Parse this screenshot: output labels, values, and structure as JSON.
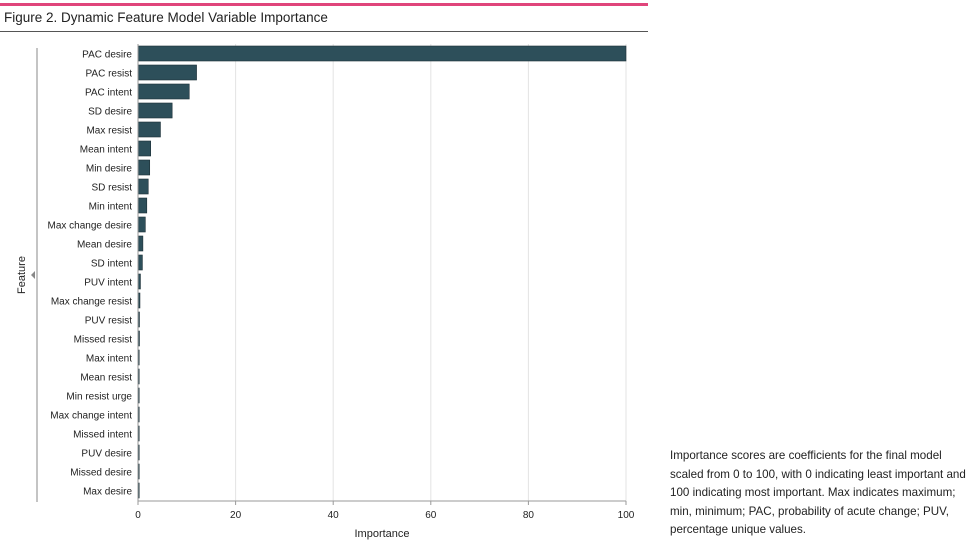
{
  "figure": {
    "title": "Figure 2. Dynamic Feature Model Variable Importance",
    "caption": "Importance scores are coefficients for the final model scaled from 0 to 100, with 0 indicating least important and 100 indicating most important. Max indicates maximum; min, minimum; PAC, probability of acute change; PUV, percentage unique values."
  },
  "colors": {
    "bar": "#2d4f5a",
    "accent_line": "#e0457b",
    "grid": "#e3e3e3"
  },
  "chart_data": {
    "type": "bar",
    "orientation": "horizontal",
    "xlabel": "Importance",
    "ylabel": "Feature",
    "xlim": [
      0,
      100
    ],
    "xticks": [
      0,
      20,
      40,
      60,
      80,
      100
    ],
    "grid": true,
    "categories": [
      "PAC desire",
      "PAC resist",
      "PAC intent",
      "SD desire",
      "Max resist",
      "Mean intent",
      "Min desire",
      "SD resist",
      "Min intent",
      "Max change desire",
      "Mean desire",
      "SD intent",
      "PUV intent",
      "Max change resist",
      "PUV resist",
      "Missed resist",
      "Max intent",
      "Mean resist",
      "Min resist urge",
      "Max change intent",
      "Missed intent",
      "PUV desire",
      "Missed desire",
      "Max desire"
    ],
    "values": [
      100,
      12,
      10.5,
      7,
      4.6,
      2.6,
      2.4,
      2.1,
      1.8,
      1.5,
      1.0,
      0.9,
      0.5,
      0.4,
      0.3,
      0.3,
      0.2,
      0.2,
      0.2,
      0.15,
      0.15,
      0.1,
      0.1,
      0.1
    ]
  }
}
